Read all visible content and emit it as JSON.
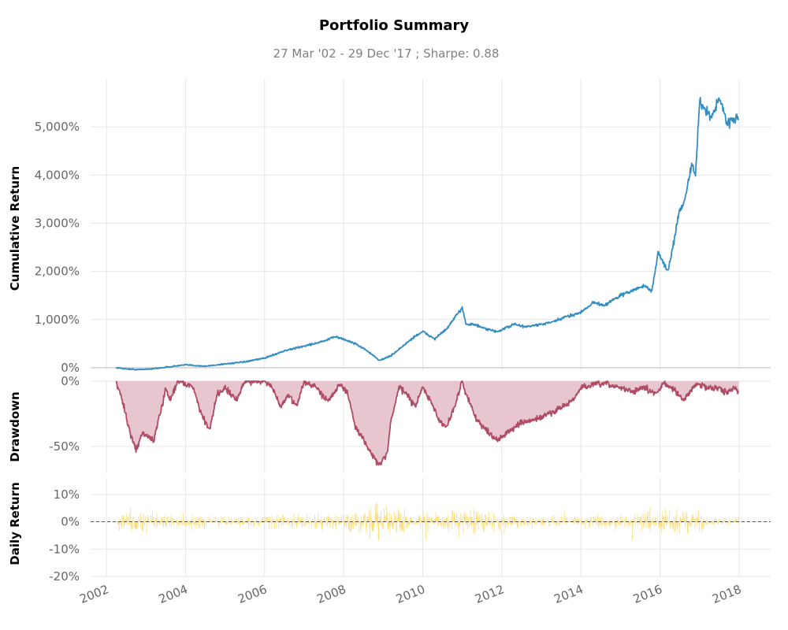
{
  "chart_data": {
    "type": "line",
    "title": "Portfolio Summary",
    "subtitle": "27 Mar '02 - 29 Dec '17 ;  Sharpe: 0.88",
    "colors": {
      "cumulative": "#348dc1",
      "drawdown_line": "#af4b64",
      "drawdown_fill": "#e8c6cf",
      "daily": "#fedd78",
      "zero_line": "#555555"
    },
    "x_axis": {
      "ticks": [
        "2002",
        "2004",
        "2006",
        "2008",
        "2010",
        "2012",
        "2014",
        "2016",
        "2018"
      ],
      "xlim": [
        2001.6,
        2018.8
      ]
    },
    "panels": [
      {
        "id": "cumulative",
        "ylabel": "Cumulative Return",
        "y_ticks": [
          "0%",
          "1,000%",
          "2,000%",
          "3,000%",
          "4,000%",
          "5,000%"
        ],
        "ylim": [
          -50,
          6000
        ],
        "series": {
          "x": [
            2002.24,
            2002.6,
            2002.8,
            2003.2,
            2003.6,
            2004.0,
            2004.5,
            2005.0,
            2005.5,
            2006.0,
            2006.5,
            2007.0,
            2007.5,
            2007.8,
            2008.3,
            2008.6,
            2008.9,
            2009.2,
            2009.5,
            2009.8,
            2010.0,
            2010.3,
            2010.6,
            2011.0,
            2011.1,
            2011.3,
            2011.6,
            2011.9,
            2012.3,
            2012.6,
            2013.0,
            2013.3,
            2013.6,
            2014.0,
            2014.3,
            2014.6,
            2015.0,
            2015.3,
            2015.6,
            2015.8,
            2015.95,
            2016.2,
            2016.35,
            2016.5,
            2016.6,
            2016.8,
            2016.9,
            2017.0,
            2017.3,
            2017.5,
            2017.7,
            2017.99
          ],
          "y": [
            0,
            -30,
            -40,
            -20,
            20,
            60,
            30,
            80,
            120,
            200,
            350,
            450,
            550,
            650,
            500,
            350,
            150,
            250,
            450,
            650,
            750,
            600,
            800,
            1250,
            900,
            900,
            800,
            750,
            900,
            850,
            900,
            950,
            1050,
            1150,
            1350,
            1300,
            1500,
            1600,
            1700,
            1600,
            2400,
            2000,
            2600,
            3300,
            3400,
            4200,
            4000,
            5500,
            5200,
            5600,
            5100,
            5200
          ]
        }
      },
      {
        "id": "drawdown",
        "ylabel": "Drawdown",
        "y_ticks": [
          "0%",
          "-50%"
        ],
        "ylim": [
          -70,
          0
        ],
        "series": {
          "x": [
            2002.24,
            2002.4,
            2002.6,
            2002.75,
            2002.9,
            2003.2,
            2003.4,
            2003.5,
            2003.6,
            2003.8,
            2004.0,
            2004.2,
            2004.4,
            2004.6,
            2004.8,
            2005.0,
            2005.3,
            2005.5,
            2006.0,
            2006.2,
            2006.4,
            2006.6,
            2006.8,
            2007.0,
            2007.3,
            2007.6,
            2007.9,
            2008.1,
            2008.3,
            2008.5,
            2008.7,
            2008.9,
            2009.1,
            2009.2,
            2009.4,
            2009.6,
            2009.8,
            2010.0,
            2010.2,
            2010.4,
            2010.6,
            2010.8,
            2011.0,
            2011.1,
            2011.3,
            2011.5,
            2011.7,
            2011.9,
            2012.2,
            2012.5,
            2012.8,
            2013.2,
            2013.5,
            2013.8,
            2014.0,
            2014.3,
            2014.6,
            2015.0,
            2015.3,
            2015.6,
            2015.9,
            2016.1,
            2016.3,
            2016.6,
            2016.9,
            2017.2,
            2017.5,
            2017.7,
            2017.85,
            2017.99
          ],
          "y": [
            0,
            -15,
            -40,
            -53,
            -40,
            -45,
            -20,
            -5,
            -15,
            0,
            -2,
            -5,
            -25,
            -38,
            -10,
            -5,
            -15,
            0,
            0,
            -5,
            -20,
            -10,
            -20,
            0,
            -5,
            -15,
            -2,
            -10,
            -35,
            -45,
            -55,
            -65,
            -55,
            -30,
            -5,
            -10,
            -20,
            -5,
            -15,
            -30,
            -35,
            -20,
            0,
            -10,
            -25,
            -35,
            -40,
            -45,
            -38,
            -32,
            -30,
            -25,
            -20,
            -15,
            -5,
            -3,
            -2,
            -5,
            -8,
            -5,
            -10,
            -1,
            -5,
            -15,
            -2,
            -5,
            -5,
            -10,
            -4,
            -8
          ]
        }
      },
      {
        "id": "daily",
        "ylabel": "Daily Return",
        "y_ticks": [
          "10%",
          "0%",
          "-10%",
          "-20%"
        ],
        "ylim": [
          -20,
          16
        ],
        "series": {
          "x": [
            2002.24,
            2002.5,
            2002.8,
            2003.1,
            2003.3,
            2003.6,
            2004.0,
            2004.5,
            2005.0,
            2005.5,
            2006.0,
            2006.4,
            2007.0,
            2007.5,
            2008.0,
            2008.5,
            2008.75,
            2008.9,
            2009.0,
            2009.2,
            2009.5,
            2009.8,
            2010.0,
            2010.5,
            2011.0,
            2011.2,
            2011.5,
            2011.8,
            2012.0,
            2012.5,
            2013.0,
            2013.5,
            2014.0,
            2014.5,
            2015.0,
            2015.5,
            2015.7,
            2016.0,
            2016.2,
            2016.5,
            2016.8,
            2017.0,
            2017.2,
            2017.5,
            2017.99
          ],
          "amplitude": [
            4.0,
            6.5,
            6.0,
            6.0,
            8.0,
            4.0,
            3.5,
            4.5,
            3.0,
            3.0,
            3.0,
            5.0,
            4.5,
            4.5,
            6.0,
            9.0,
            13.0,
            12.0,
            10.0,
            9.0,
            7.0,
            5.0,
            5.0,
            5.0,
            6.0,
            7.5,
            7.0,
            7.0,
            5.0,
            3.5,
            3.0,
            3.0,
            3.0,
            3.5,
            4.0,
            5.0,
            7.0,
            6.0,
            7.5,
            6.5,
            6.5,
            5.5,
            3.0,
            2.5,
            2.0
          ]
        }
      }
    ]
  }
}
